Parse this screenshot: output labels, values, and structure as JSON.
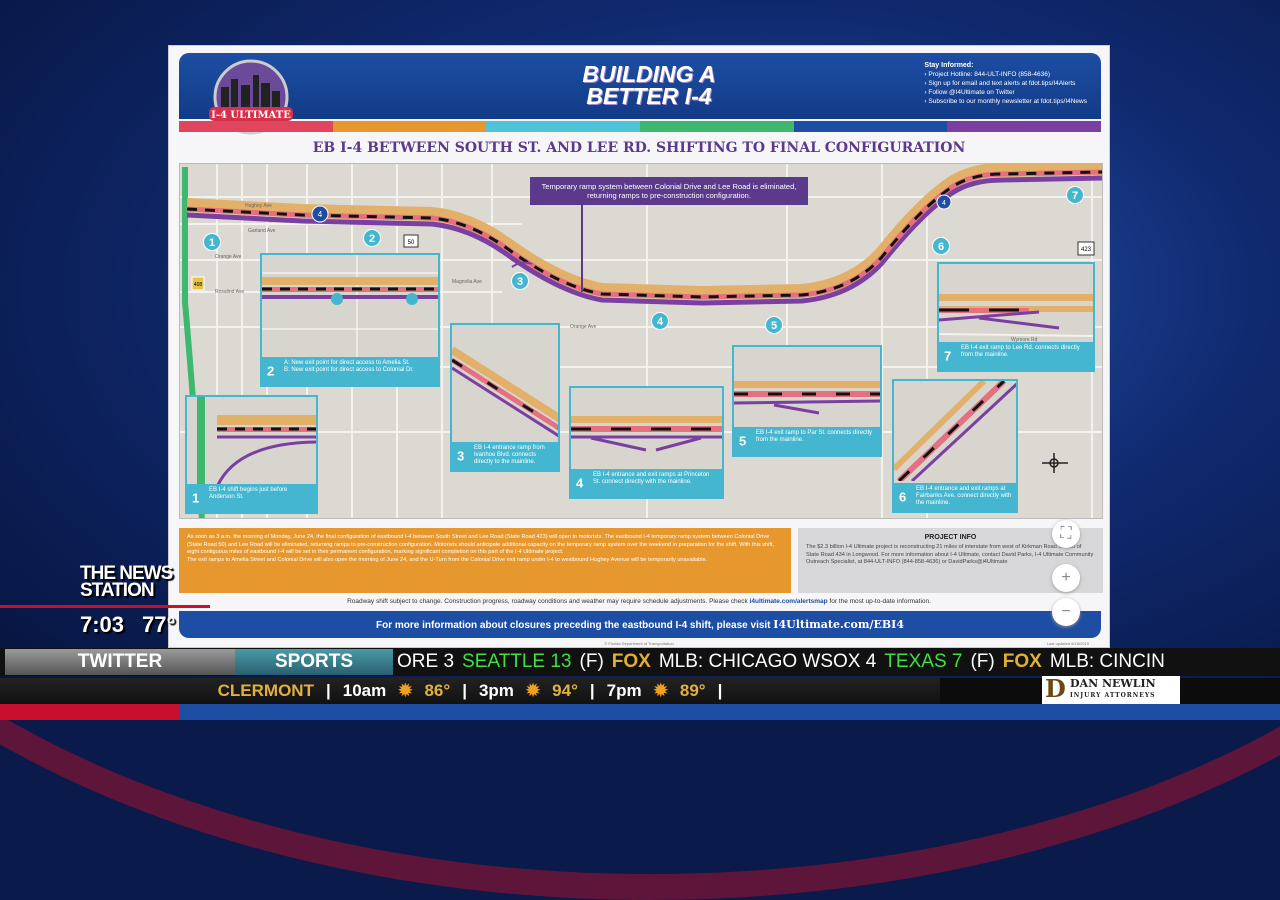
{
  "infographic": {
    "logo_text": "I-4 ULTIMATE",
    "title": "BUILDING A BETTER I-4",
    "stay_informed": {
      "heading": "Stay Informed:",
      "items": [
        "Project Hotline: 844-ULT-INFO (858-4636)",
        "Sign up for email and text alerts at fdot.tips/I4Alerts",
        "Follow @I4Ultimate on Twitter",
        "Subscribe to our monthly newsletter at fdot.tips/I4News"
      ]
    },
    "stripe_colors": [
      "#e0455e",
      "#e6982e",
      "#4fc3d9",
      "#3db86e",
      "#1d4ea3",
      "#7a3fa0"
    ],
    "subtitle": "EB I-4 BETWEEN SOUTH ST. AND LEE RD. SHIFTING TO FINAL CONFIGURATION",
    "callout": "Temporary ramp system between Colonial Drive and Lee Road is eliminated, returning ramps to pre-construction configuration.",
    "markers": [
      "1",
      "2",
      "3",
      "4",
      "5",
      "6",
      "7"
    ],
    "streets": [
      "Hughey Ave",
      "Garland Ave",
      "Orange Ave",
      "Rosalind Ave",
      "Magnolia Ave",
      "Orange Ave",
      "Princeton St",
      "Par St",
      "Fairbanks Ave",
      "Lee Rd",
      "Wymore Rd"
    ],
    "route_shields": {
      "sr50": "50",
      "sr423": "423",
      "sr408": "408",
      "i4": "4"
    },
    "insets": [
      {
        "num": "1",
        "text": "EB I-4 shift begins just before Anderson St."
      },
      {
        "num": "2",
        "text": "A: New exit point for direct access to Amelia St.",
        "text2": "B: New exit point for direct access to Colonial Dr.",
        "labels": [
          "2A",
          "2B"
        ]
      },
      {
        "num": "3",
        "text": "EB I-4 entrance ramp from Ivanhoe Blvd. connects directly to the mainline."
      },
      {
        "num": "4",
        "text": "EB I-4 entrance and exit ramps at Princeton St. connect directly with the mainline."
      },
      {
        "num": "5",
        "text": "EB I-4 exit ramp to Par St. connects directly from the mainline."
      },
      {
        "num": "6",
        "text": "EB I-4 entrance and exit ramps at Fairbanks Ave. connect directly with the mainline."
      },
      {
        "num": "7",
        "text": "EB I-4 exit ramp to Lee Rd. connects directly from the mainline."
      }
    ],
    "notice": [
      "As soon as 3 a.m. the morning of Monday, June 24, the final configuration of eastbound I-4 between South Street and Lee Road (State Road 423) will open to motorists. The eastbound I-4 temporary ramp system between Colonial Drive (State Road 50) and Lee Road will be eliminated, returning ramps to pre-construction configuration. Motorists should anticipate additional capacity on the temporary ramp system over the weekend in preparation for the shift. With this shift, eight contiguous miles of eastbound I-4 will be set in their permanent configuration, marking significant completion on this part of the I-4 Ultimate project.",
      "The exit ramps to Amelia Street and Colonial Drive will also open the morning of June 24, and the U-Turn from the Colonial Drive exit ramp under I-4 to westbound Hughey Avenue will be temporarily unavailable."
    ],
    "project_info": {
      "heading": "PROJECT INFO",
      "text": "The $2.3 billion I-4 Ultimate project is reconstructing 21 miles of interstate from west of Kirkman Road to east of State Road 434 in Longwood. For more information about I-4 Ultimate, contact David Parks, I-4 Ultimate Community Outreach Specialist, at 844-ULT-INFO (844-858-4636) or DavidParks@i4Ultimate"
    },
    "disclaimer_pre": "Roadway shift subject to change. Construction progress, roadway conditions and weather may require schedule adjustments. Please check ",
    "disclaimer_link": "i4ultimate.com/alertsmap",
    "disclaimer_post": " for the most up-to-date information.",
    "footer_text": "For more information about closures preceding the eastbound I-4 shift, please visit ",
    "footer_url": "I4Ultimate.com/EBI4",
    "fine_center": "© Florida Department of Transportation",
    "fine_right": "Last updated 6/18/2019"
  },
  "map_controls": {
    "fit": "⛶",
    "zoom_in": "+",
    "zoom_out": "−"
  },
  "broadcast": {
    "station": "THE NEWS STATION",
    "time": "7:03",
    "temp": "77°",
    "ticker1": {
      "tab1": "TWITTER",
      "tab2": "SPORTS",
      "items": [
        {
          "t": "ORE 3",
          "c": "w"
        },
        {
          "t": "SEATTLE 13",
          "c": "g"
        },
        {
          "t": "(F)",
          "c": "w"
        },
        {
          "t": "FOX",
          "c": "fox"
        },
        {
          "t": "MLB: CHICAGO WSOX 4",
          "c": "w"
        },
        {
          "t": "TEXAS 7",
          "c": "g"
        },
        {
          "t": "(F)",
          "c": "w"
        },
        {
          "t": "FOX",
          "c": "fox"
        },
        {
          "t": "MLB: CINCIN",
          "c": "w"
        }
      ]
    },
    "weather": {
      "city": "CLERMONT",
      "slots": [
        {
          "time": "10am",
          "temp": "86°"
        },
        {
          "time": "3pm",
          "temp": "94°"
        },
        {
          "time": "7pm",
          "temp": "89°"
        }
      ]
    },
    "sponsor": {
      "name": "DAN NEWLIN",
      "sub": "INJURY ATTORNEYS"
    }
  }
}
